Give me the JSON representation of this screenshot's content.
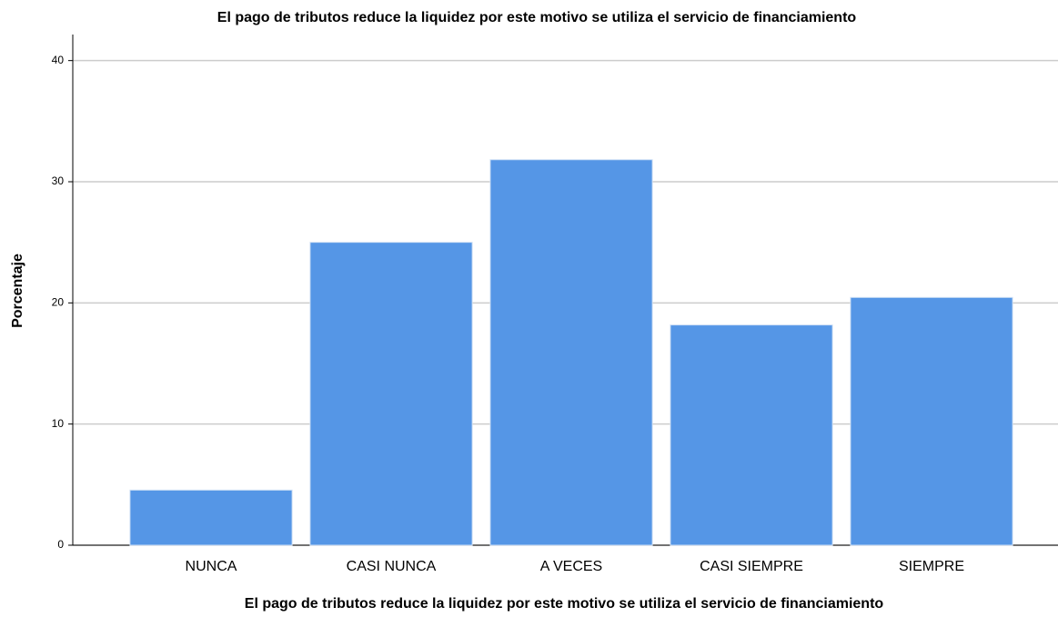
{
  "chart_data": {
    "type": "bar",
    "title": "El pago de tributos reduce la liquidez por este motivo se utiliza el servicio de financiamiento",
    "x_label": "El pago de tributos reduce la liquidez por este motivo se utiliza el servicio de financiamiento",
    "y_label": "Porcentaje",
    "categories": [
      "NUNCA",
      "CASI NUNCA",
      "A VECES",
      "CASI SIEMPRE",
      "SIEMPRE"
    ],
    "values": [
      4.55,
      25.0,
      31.82,
      18.18,
      20.45
    ],
    "color": "#5596e6",
    "ylim": [
      0,
      42
    ],
    "yticks": [
      0,
      10,
      20,
      30,
      40
    ],
    "grid": true
  }
}
